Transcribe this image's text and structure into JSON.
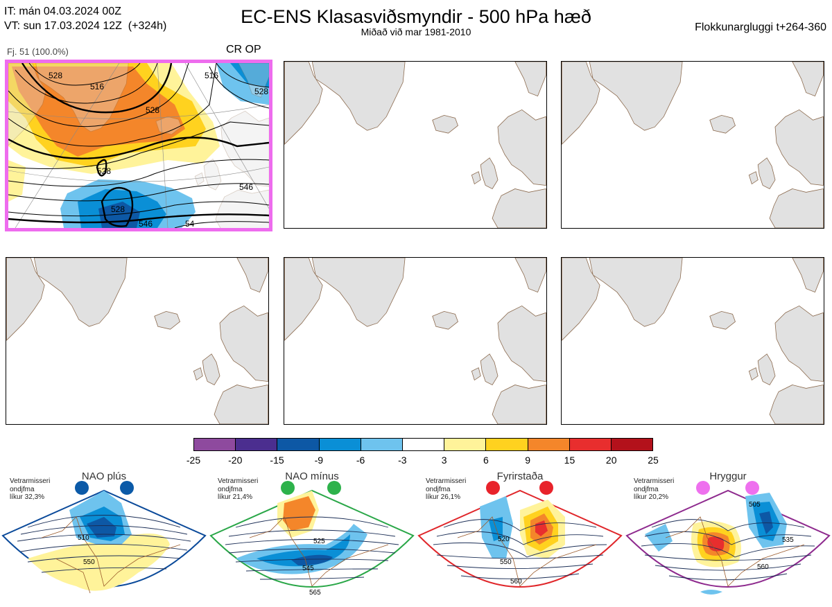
{
  "header": {
    "it_line": "IT: mán 04.03.2024 00Z",
    "vt_line": "VT: sun 17.03.2024 12Z  (+324h)",
    "title": "EC-ENS Klasasviðsmyndir - 500 hPa hæð",
    "subtitle": "Miðað við mar 1981-2010",
    "window": "Flokkunargluggi t+264-360"
  },
  "cluster": {
    "members_label": "Fj. 51 (100.0%)",
    "tags": "CR OP",
    "contour_labels": [
      "528",
      "516",
      "528",
      "528",
      "516",
      "528",
      "528",
      "546",
      "546",
      "54",
      "54"
    ]
  },
  "colorbar": {
    "ticks": [
      "-25",
      "-20",
      "-15",
      "-9",
      "-6",
      "-3",
      "3",
      "6",
      "9",
      "15",
      "20",
      "25"
    ],
    "colors": [
      "#8e4a9e",
      "#4b2e8f",
      "#0d58a5",
      "#0a8fd6",
      "#6ec3ee",
      "#ffffff",
      "#fff39a",
      "#ffd21f",
      "#f4862a",
      "#e82e2e",
      "#b3111b"
    ]
  },
  "regimes": [
    {
      "name": "NAO plús",
      "info": "Vetrarmisseri\nondjfma\nlíkur 32,3%",
      "dot_color": "#0b5aa8",
      "border": "#0b4a9a",
      "labels": [
        "510",
        "550"
      ]
    },
    {
      "name": "NAO mínus",
      "info": "Vetrarmisseri\nondjfma\nlíkur 21,4%",
      "dot_color": "#2db24b",
      "border": "#2aa748",
      "labels": [
        "525",
        "545",
        "565"
      ]
    },
    {
      "name": "Fyrirstaða",
      "info": "Vetrarmisseri\nondjfma\nlíkur 26,1%",
      "dot_color": "#e8232b",
      "border": "#e0262a",
      "labels": [
        "520",
        "550",
        "560"
      ]
    },
    {
      "name": "Hryggur",
      "info": "Vetrarmisseri\nondjfma\nlíkur 20,2%",
      "dot_color": "#ee70ee",
      "border": "#8e2a8e",
      "labels": [
        "505",
        "535",
        "560"
      ]
    }
  ]
}
